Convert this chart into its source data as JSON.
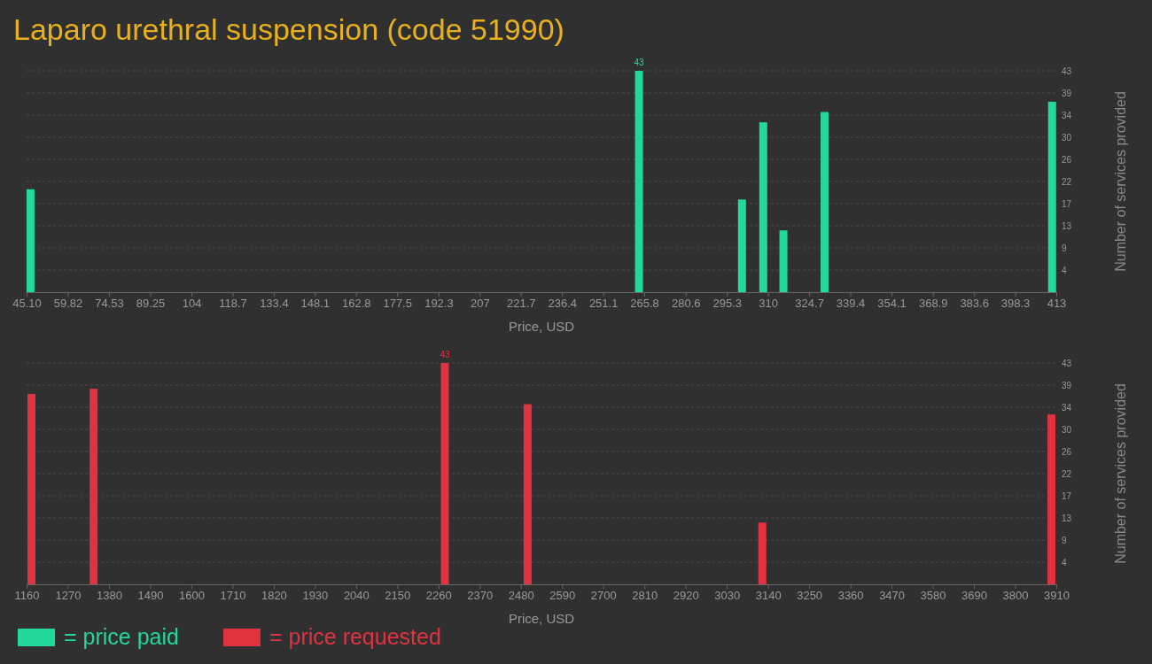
{
  "chart_data": [
    {
      "type": "bar",
      "title": "Laparo urethral suspension (code 51990)",
      "xlabel": "Price, USD",
      "ylabel": "Number of services provided",
      "x": [
        46.5,
        263.9,
        300.7,
        308.3,
        315.5,
        330.2,
        411.5
      ],
      "series": [
        {
          "name": "= price paid",
          "color": "#22d89a",
          "values": [
            20,
            43,
            18,
            33,
            12,
            35,
            37
          ],
          "value_labels": [
            null,
            "43",
            null,
            null,
            null,
            null,
            null
          ]
        }
      ],
      "xlim": [
        45.1,
        413
      ],
      "xticks": [
        {
          "value": 45.1,
          "label": "45.10"
        },
        59.82,
        74.53,
        89.25,
        104,
        118.7,
        133.4,
        148.1,
        162.8,
        177.5,
        192.3,
        207,
        221.7,
        236.4,
        251.1,
        265.8,
        280.6,
        295.3,
        310,
        324.7,
        339.4,
        354.1,
        368.9,
        383.6,
        398.3,
        413
      ],
      "ylim": [
        0,
        43
      ],
      "yticks": [
        {
          "value": 4.3,
          "label": "4"
        },
        {
          "value": 8.6,
          "label": "9"
        },
        {
          "value": 12.9,
          "label": "13"
        },
        {
          "value": 17.2,
          "label": "17"
        },
        {
          "value": 21.5,
          "label": "22"
        },
        {
          "value": 25.8,
          "label": "26"
        },
        {
          "value": 30.1,
          "label": "30"
        },
        {
          "value": 34.4,
          "label": "34"
        },
        {
          "value": 38.7,
          "label": "39"
        },
        {
          "value": 43,
          "label": "43"
        }
      ],
      "grid": "y",
      "legend": "bottom left"
    },
    {
      "type": "bar",
      "xlabel": "Price, USD",
      "ylabel": "Number of services provided",
      "x": [
        1173,
        1339,
        2277,
        2498,
        3125,
        3897
      ],
      "series": [
        {
          "name": "= price requested",
          "color": "#e0323f",
          "values": [
            37,
            38,
            43,
            35,
            12,
            33
          ],
          "value_labels": [
            null,
            null,
            "43",
            null,
            null,
            null
          ]
        }
      ],
      "xlim": [
        1160,
        3910
      ],
      "xticks": [
        1160,
        1270,
        1380,
        1490,
        1600,
        1710,
        1820,
        1930,
        2040,
        2150,
        2260,
        2370,
        2480,
        2590,
        2700,
        2810,
        2920,
        3030,
        3140,
        3250,
        3360,
        3470,
        3580,
        3690,
        3800,
        3910
      ],
      "ylim": [
        0,
        43
      ],
      "yticks": [
        {
          "value": 4.3,
          "label": "4"
        },
        {
          "value": 8.6,
          "label": "9"
        },
        {
          "value": 12.9,
          "label": "13"
        },
        {
          "value": 17.2,
          "label": "17"
        },
        {
          "value": 21.5,
          "label": "22"
        },
        {
          "value": 25.8,
          "label": "26"
        },
        {
          "value": 30.1,
          "label": "30"
        },
        {
          "value": 34.4,
          "label": "34"
        },
        {
          "value": 38.7,
          "label": "39"
        },
        {
          "value": 43,
          "label": "43"
        }
      ],
      "grid": "y",
      "legend": "bottom left"
    }
  ]
}
